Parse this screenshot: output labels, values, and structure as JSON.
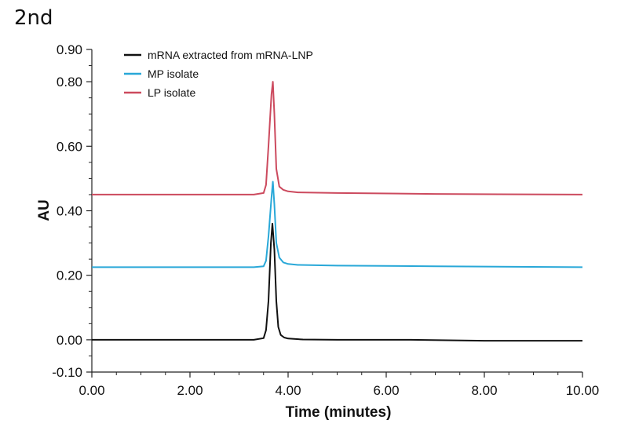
{
  "corner_label": "2nd",
  "chart_data": {
    "type": "line",
    "title": "",
    "xlabel": "Time (minutes)",
    "ylabel": "AU",
    "xlim": [
      0,
      10
    ],
    "ylim": [
      -0.1,
      0.9
    ],
    "x_ticks": [
      0,
      2,
      4,
      6,
      8,
      10
    ],
    "x_tick_labels": [
      "0.00",
      "2.00",
      "4.00",
      "6.00",
      "8.00",
      "10.00"
    ],
    "y_ticks": [
      -0.1,
      0.0,
      0.2,
      0.4,
      0.6,
      0.8,
      0.9
    ],
    "y_tick_labels": [
      "-0.10",
      "0.00",
      "0.20",
      "0.40",
      "0.60",
      "0.80",
      "0.90"
    ],
    "grid": false,
    "legend_position": "top-left",
    "series": [
      {
        "name": "mRNA extracted from mRNA-LNP",
        "color": "#111111",
        "x": [
          0,
          3.3,
          3.5,
          3.55,
          3.6,
          3.65,
          3.68,
          3.72,
          3.76,
          3.8,
          3.85,
          3.92,
          4.0,
          4.3,
          5.0,
          6.5,
          8.0,
          10.0
        ],
        "y": [
          0.0,
          0.0,
          0.005,
          0.03,
          0.12,
          0.3,
          0.36,
          0.28,
          0.12,
          0.04,
          0.015,
          0.007,
          0.004,
          0.001,
          0.0,
          0.0,
          -0.003,
          -0.003
        ]
      },
      {
        "name": "MP isolate",
        "color": "#29a8d8",
        "x": [
          0,
          3.3,
          3.5,
          3.55,
          3.6,
          3.66,
          3.69,
          3.72,
          3.76,
          3.82,
          3.9,
          4.0,
          4.2,
          5.0,
          7.0,
          10.0
        ],
        "y": [
          0.225,
          0.225,
          0.228,
          0.245,
          0.32,
          0.44,
          0.49,
          0.42,
          0.3,
          0.255,
          0.24,
          0.235,
          0.232,
          0.23,
          0.228,
          0.225
        ]
      },
      {
        "name": "LP isolate",
        "color": "#cc4a5e",
        "x": [
          0,
          3.3,
          3.5,
          3.55,
          3.6,
          3.66,
          3.69,
          3.72,
          3.76,
          3.82,
          3.9,
          4.0,
          4.2,
          5.0,
          7.0,
          10.0
        ],
        "y": [
          0.45,
          0.45,
          0.455,
          0.48,
          0.6,
          0.76,
          0.8,
          0.7,
          0.53,
          0.475,
          0.465,
          0.46,
          0.457,
          0.455,
          0.452,
          0.45
        ]
      }
    ]
  }
}
